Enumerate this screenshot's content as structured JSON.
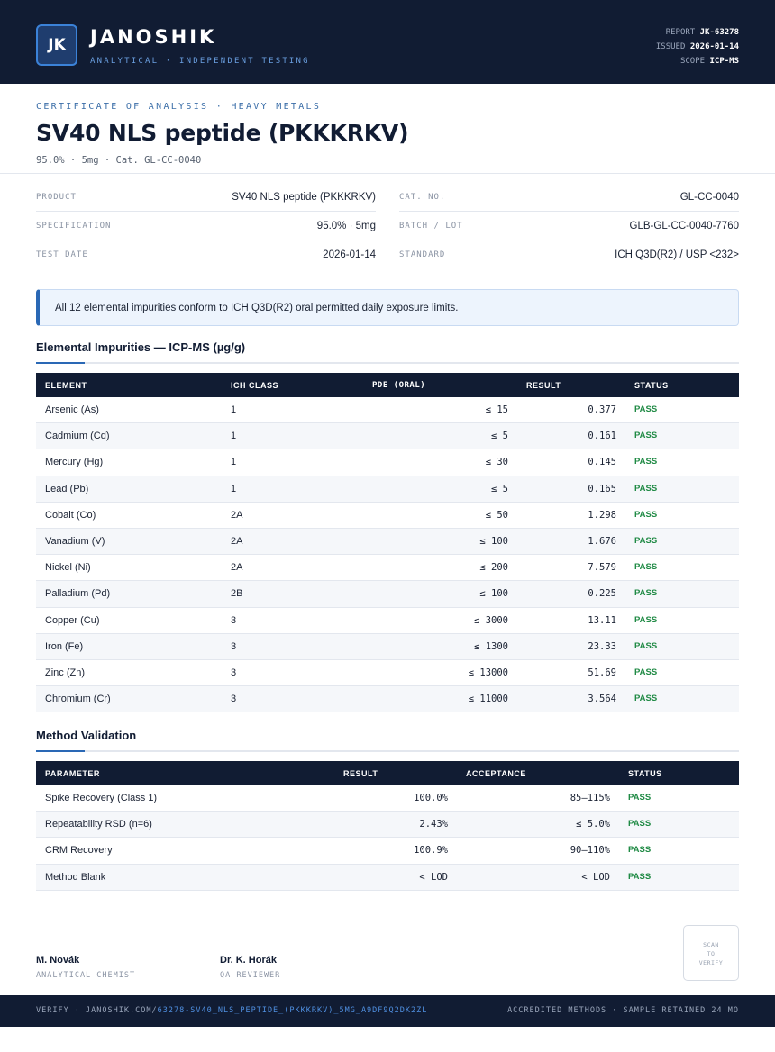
{
  "header": {
    "logo_text": "JK",
    "brand": "JANOSHIK",
    "tagline": "ANALYTICAL · INDEPENDENT TESTING",
    "report_label": "REPORT",
    "report_value": "JK-63278",
    "issued_label": "ISSUED",
    "issued_value": "2026-01-14",
    "scope_label": "SCOPE",
    "scope_value": "ICP-MS"
  },
  "title_block": {
    "kicker": "CERTIFICATE OF ANALYSIS · HEAVY METALS",
    "title": "SV40 NLS peptide (PKKKRKV)",
    "subtitle": "95.0% · 5mg  ·  Cat. GL-CC-0040"
  },
  "info": {
    "left": [
      {
        "label": "PRODUCT",
        "value": "SV40 NLS peptide (PKKKRKV)"
      },
      {
        "label": "SPECIFICATION",
        "value": "95.0% · 5mg"
      },
      {
        "label": "TEST DATE",
        "value": "2026-01-14"
      }
    ],
    "right": [
      {
        "label": "CAT. NO.",
        "value": "GL-CC-0040"
      },
      {
        "label": "BATCH / LOT",
        "value": "GLB-GL-CC-0040-7760"
      },
      {
        "label": "STANDARD",
        "value": "ICH Q3D(R2) / USP <232>"
      }
    ]
  },
  "callout": "All 12 elemental impurities conform to ICH Q3D(R2) oral permitted daily exposure limits.",
  "impurities": {
    "title": "Elemental Impurities — ICP-MS (µg/g)",
    "headers": {
      "element": "ELEMENT",
      "ich_class": "ICH CLASS",
      "pde": "PDE (ORAL)",
      "result": "RESULT",
      "status": "STATUS"
    },
    "rows": [
      {
        "element": "Arsenic (As)",
        "ich_class": "1",
        "pde": "≤ 15",
        "result": "0.377",
        "status": "PASS"
      },
      {
        "element": "Cadmium (Cd)",
        "ich_class": "1",
        "pde": "≤ 5",
        "result": "0.161",
        "status": "PASS"
      },
      {
        "element": "Mercury (Hg)",
        "ich_class": "1",
        "pde": "≤ 30",
        "result": "0.145",
        "status": "PASS"
      },
      {
        "element": "Lead (Pb)",
        "ich_class": "1",
        "pde": "≤ 5",
        "result": "0.165",
        "status": "PASS"
      },
      {
        "element": "Cobalt (Co)",
        "ich_class": "2A",
        "pde": "≤ 50",
        "result": "1.298",
        "status": "PASS"
      },
      {
        "element": "Vanadium (V)",
        "ich_class": "2A",
        "pde": "≤ 100",
        "result": "1.676",
        "status": "PASS"
      },
      {
        "element": "Nickel (Ni)",
        "ich_class": "2A",
        "pde": "≤ 200",
        "result": "7.579",
        "status": "PASS"
      },
      {
        "element": "Palladium (Pd)",
        "ich_class": "2B",
        "pde": "≤ 100",
        "result": "0.225",
        "status": "PASS"
      },
      {
        "element": "Copper (Cu)",
        "ich_class": "3",
        "pde": "≤ 3000",
        "result": "13.11",
        "status": "PASS"
      },
      {
        "element": "Iron (Fe)",
        "ich_class": "3",
        "pde": "≤ 1300",
        "result": "23.33",
        "status": "PASS"
      },
      {
        "element": "Zinc (Zn)",
        "ich_class": "3",
        "pde": "≤ 13000",
        "result": "51.69",
        "status": "PASS"
      },
      {
        "element": "Chromium (Cr)",
        "ich_class": "3",
        "pde": "≤ 11000",
        "result": "3.564",
        "status": "PASS"
      }
    ]
  },
  "validation": {
    "title": "Method Validation",
    "headers": {
      "parameter": "PARAMETER",
      "result": "RESULT",
      "acceptance": "ACCEPTANCE",
      "status": "STATUS"
    },
    "rows": [
      {
        "parameter": "Spike Recovery (Class 1)",
        "result": "100.0%",
        "acceptance": "85–115%",
        "status": "PASS"
      },
      {
        "parameter": "Repeatability RSD (n=6)",
        "result": "2.43%",
        "acceptance": "≤ 5.0%",
        "status": "PASS"
      },
      {
        "parameter": "CRM Recovery",
        "result": "100.9%",
        "acceptance": "90–110%",
        "status": "PASS"
      },
      {
        "parameter": "Method Blank",
        "result": "< LOD",
        "acceptance": "< LOD",
        "status": "PASS"
      }
    ]
  },
  "signatures": [
    {
      "name": "M. Novák",
      "role": "ANALYTICAL CHEMIST"
    },
    {
      "name": "Dr. K. Horák",
      "role": "QA REVIEWER"
    }
  ],
  "qr": {
    "line1": "SCAN",
    "line2": "TO",
    "line3": "VERIFY"
  },
  "footer": {
    "verify_prefix": "VERIFY · JANOSHIK.COM/",
    "verify_link": "63278-SV40_NLS_PEPTIDE_(PKKKRKV)_5MG_A9DF9Q2DK2ZL",
    "right": "ACCREDITED METHODS · SAMPLE RETAINED 24 MO"
  },
  "colors": {
    "navy": "#111c33",
    "accent": "#2a68b5",
    "pass": "#1f8a44"
  }
}
